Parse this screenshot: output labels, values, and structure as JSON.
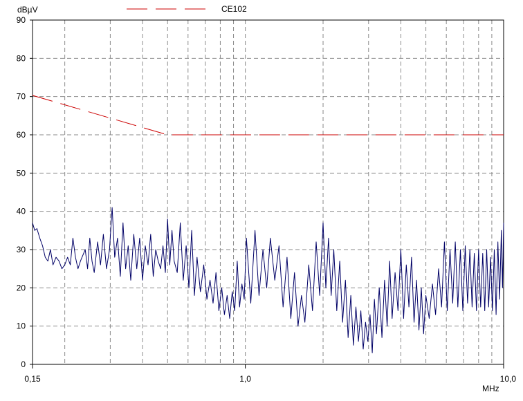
{
  "chart_data": {
    "type": "line",
    "title": "",
    "ylabel": "dBµV",
    "xlabel": "MHz",
    "xscale": "log",
    "xlim": [
      0.15,
      10.0
    ],
    "ylim": [
      0,
      90
    ],
    "grid": true,
    "legend_position": "top",
    "y_ticks": [
      0,
      10,
      20,
      30,
      40,
      50,
      60,
      70,
      80,
      90
    ],
    "x_tick_labels": [
      {
        "value": 0.15,
        "label": "0,15"
      },
      {
        "value": 1.0,
        "label": "1,0"
      },
      {
        "value": 10.0,
        "label": "10,0"
      }
    ],
    "x_gridlines": [
      0.2,
      0.3,
      0.4,
      0.5,
      0.6,
      0.7,
      0.8,
      0.9,
      1,
      2,
      3,
      4,
      5,
      6,
      7,
      8,
      9
    ],
    "series": [
      {
        "name": "CE102",
        "color": "#cc0000",
        "style": "dashed",
        "points": [
          [
            0.15,
            70.3
          ],
          [
            0.5,
            60.0
          ],
          [
            10.0,
            60.0
          ]
        ]
      },
      {
        "name": "",
        "color": "#000066",
        "style": "solid",
        "points": [
          [
            0.15,
            37
          ],
          [
            0.153,
            35
          ],
          [
            0.156,
            35.5
          ],
          [
            0.16,
            33
          ],
          [
            0.164,
            31
          ],
          [
            0.168,
            28
          ],
          [
            0.172,
            27
          ],
          [
            0.176,
            30
          ],
          [
            0.18,
            26
          ],
          [
            0.185,
            28
          ],
          [
            0.19,
            27
          ],
          [
            0.195,
            25
          ],
          [
            0.2,
            26
          ],
          [
            0.205,
            28
          ],
          [
            0.21,
            26
          ],
          [
            0.215,
            33
          ],
          [
            0.22,
            28
          ],
          [
            0.225,
            25
          ],
          [
            0.23,
            27
          ],
          [
            0.24,
            30
          ],
          [
            0.245,
            25
          ],
          [
            0.25,
            33
          ],
          [
            0.255,
            27
          ],
          [
            0.26,
            24
          ],
          [
            0.268,
            32
          ],
          [
            0.275,
            26
          ],
          [
            0.282,
            34
          ],
          [
            0.29,
            25
          ],
          [
            0.298,
            30
          ],
          [
            0.305,
            41
          ],
          [
            0.312,
            28
          ],
          [
            0.32,
            33
          ],
          [
            0.328,
            23
          ],
          [
            0.336,
            37
          ],
          [
            0.344,
            25
          ],
          [
            0.352,
            31
          ],
          [
            0.36,
            22
          ],
          [
            0.37,
            34
          ],
          [
            0.38,
            25
          ],
          [
            0.39,
            33
          ],
          [
            0.4,
            22
          ],
          [
            0.41,
            31
          ],
          [
            0.42,
            26
          ],
          [
            0.43,
            34
          ],
          [
            0.44,
            23
          ],
          [
            0.45,
            30
          ],
          [
            0.46,
            27
          ],
          [
            0.47,
            25
          ],
          [
            0.48,
            31
          ],
          [
            0.49,
            24
          ],
          [
            0.5,
            38
          ],
          [
            0.51,
            26
          ],
          [
            0.52,
            35
          ],
          [
            0.53,
            27
          ],
          [
            0.545,
            24
          ],
          [
            0.56,
            37
          ],
          [
            0.575,
            22
          ],
          [
            0.59,
            31
          ],
          [
            0.605,
            20
          ],
          [
            0.62,
            35
          ],
          [
            0.635,
            18
          ],
          [
            0.65,
            28
          ],
          [
            0.67,
            19
          ],
          [
            0.69,
            26
          ],
          [
            0.71,
            17
          ],
          [
            0.73,
            22
          ],
          [
            0.75,
            16
          ],
          [
            0.77,
            24
          ],
          [
            0.79,
            14
          ],
          [
            0.81,
            20
          ],
          [
            0.83,
            13
          ],
          [
            0.85,
            18
          ],
          [
            0.87,
            12
          ],
          [
            0.89,
            19
          ],
          [
            0.91,
            14
          ],
          [
            0.93,
            27
          ],
          [
            0.95,
            15
          ],
          [
            0.97,
            21
          ],
          [
            0.99,
            17
          ],
          [
            1.01,
            33
          ],
          [
            1.05,
            16
          ],
          [
            1.09,
            35
          ],
          [
            1.13,
            18
          ],
          [
            1.17,
            30
          ],
          [
            1.21,
            20
          ],
          [
            1.25,
            33
          ],
          [
            1.3,
            22
          ],
          [
            1.35,
            31
          ],
          [
            1.4,
            15
          ],
          [
            1.45,
            28
          ],
          [
            1.5,
            12
          ],
          [
            1.55,
            24
          ],
          [
            1.6,
            10
          ],
          [
            1.65,
            18
          ],
          [
            1.7,
            11
          ],
          [
            1.76,
            26
          ],
          [
            1.82,
            14
          ],
          [
            1.88,
            32
          ],
          [
            1.94,
            18
          ],
          [
            2.0,
            37
          ],
          [
            2.05,
            20
          ],
          [
            2.1,
            33
          ],
          [
            2.15,
            18
          ],
          [
            2.2,
            30
          ],
          [
            2.26,
            14
          ],
          [
            2.32,
            27
          ],
          [
            2.38,
            11
          ],
          [
            2.44,
            22
          ],
          [
            2.5,
            7
          ],
          [
            2.56,
            18
          ],
          [
            2.62,
            5
          ],
          [
            2.68,
            15
          ],
          [
            2.74,
            6
          ],
          [
            2.8,
            14
          ],
          [
            2.86,
            4
          ],
          [
            2.92,
            11
          ],
          [
            2.98,
            6
          ],
          [
            3.04,
            13
          ],
          [
            3.1,
            3
          ],
          [
            3.16,
            17
          ],
          [
            3.22,
            8
          ],
          [
            3.3,
            20
          ],
          [
            3.38,
            7
          ],
          [
            3.46,
            22
          ],
          [
            3.54,
            10
          ],
          [
            3.62,
            27
          ],
          [
            3.7,
            12
          ],
          [
            3.8,
            24
          ],
          [
            3.9,
            14
          ],
          [
            4.0,
            30
          ],
          [
            4.1,
            12
          ],
          [
            4.2,
            26
          ],
          [
            4.3,
            15
          ],
          [
            4.4,
            28
          ],
          [
            4.5,
            11
          ],
          [
            4.6,
            22
          ],
          [
            4.7,
            9
          ],
          [
            4.8,
            20
          ],
          [
            4.9,
            8
          ],
          [
            5.0,
            18
          ],
          [
            5.15,
            12
          ],
          [
            5.3,
            21
          ],
          [
            5.45,
            13
          ],
          [
            5.6,
            25
          ],
          [
            5.75,
            15
          ],
          [
            5.9,
            32
          ],
          [
            6.05,
            14
          ],
          [
            6.2,
            30
          ],
          [
            6.35,
            16
          ],
          [
            6.5,
            32
          ],
          [
            6.65,
            15
          ],
          [
            6.8,
            30
          ],
          [
            6.95,
            14
          ],
          [
            7.1,
            31
          ],
          [
            7.25,
            16
          ],
          [
            7.4,
            30
          ],
          [
            7.55,
            15
          ],
          [
            7.7,
            29
          ],
          [
            7.85,
            14
          ],
          [
            8.0,
            30
          ],
          [
            8.15,
            15
          ],
          [
            8.3,
            29
          ],
          [
            8.45,
            14
          ],
          [
            8.6,
            30
          ],
          [
            8.75,
            15
          ],
          [
            8.9,
            28
          ],
          [
            9.05,
            14
          ],
          [
            9.2,
            30
          ],
          [
            9.35,
            13
          ],
          [
            9.5,
            32
          ],
          [
            9.65,
            17
          ],
          [
            9.8,
            35
          ],
          [
            9.9,
            20
          ],
          [
            10.0,
            37
          ]
        ]
      }
    ]
  }
}
